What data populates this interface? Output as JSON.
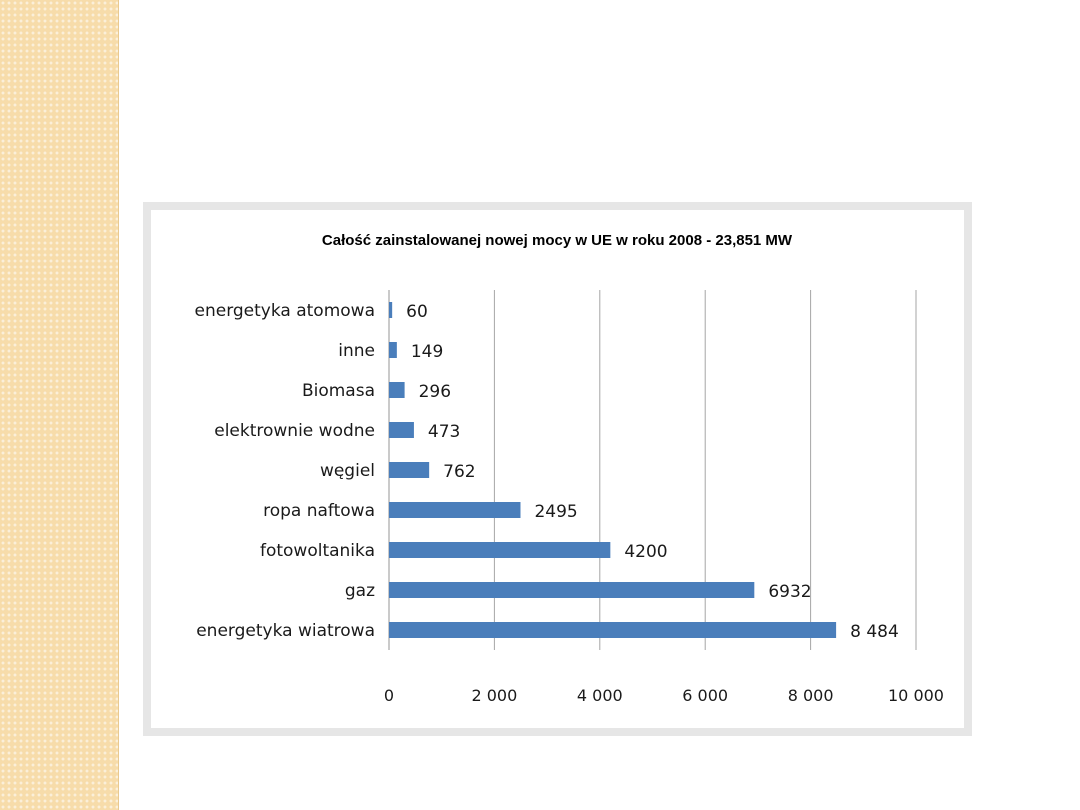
{
  "colors": {
    "sidebar": "#f7dcaa",
    "bar": "#4a7ebb",
    "frame": "#e6e6e6",
    "grid": "#a6a6a6"
  },
  "chart_data": {
    "type": "bar",
    "orientation": "horizontal",
    "title": "Całość zainstalowanej nowej mocy w UE w roku 2008 - 23,851 MW",
    "xlabel": "",
    "ylabel": "",
    "categories": [
      "energetyka atomowa",
      "inne",
      "Biomasa",
      "elektrownie wodne",
      "węgiel",
      "ropa naftowa",
      "fotowoltanika",
      "gaz",
      "energetyka wiatrowa"
    ],
    "values": [
      60,
      149,
      296,
      473,
      762,
      2495,
      4200,
      6932,
      8484
    ],
    "value_labels": [
      "60",
      "149",
      "296",
      "473",
      "762",
      "2495",
      "4200",
      "6932",
      "8 484"
    ],
    "xlim": [
      0,
      10000
    ],
    "x_ticks": [
      0,
      2000,
      4000,
      6000,
      8000,
      10000
    ],
    "x_tick_labels": [
      "0",
      "2 000",
      "4 000",
      "6 000",
      "8 000",
      "10 000"
    ],
    "grid": "vertical",
    "legend": "none"
  }
}
